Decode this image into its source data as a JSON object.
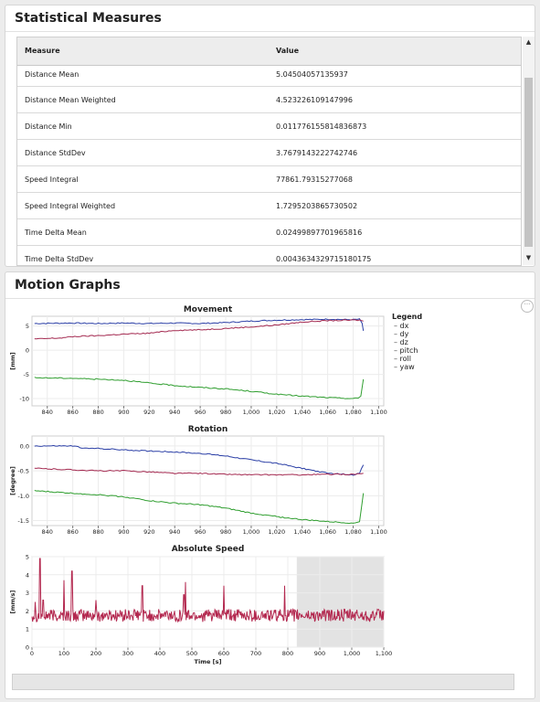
{
  "stats": {
    "title": "Statistical Measures",
    "columns": [
      "Measure",
      "Value"
    ],
    "rows": [
      {
        "measure": "Distance Mean",
        "value": "5.04504057135937"
      },
      {
        "measure": "Distance Mean Weighted",
        "value": "4.523226109147996"
      },
      {
        "measure": "Distance Min",
        "value": "0.011776155814836873"
      },
      {
        "measure": "Distance StdDev",
        "value": "3.7679143222742746"
      },
      {
        "measure": "Speed Integral",
        "value": "77861.79315277068"
      },
      {
        "measure": "Speed Integral Weighted",
        "value": "1.7295203865730502"
      },
      {
        "measure": "Time Delta Mean",
        "value": "0.02499897701965816"
      },
      {
        "measure": "Time Delta StdDev",
        "value": "0.004363432971518017​5"
      }
    ]
  },
  "graphs": {
    "title": "Motion Graphs",
    "legend": {
      "title": "Legend",
      "items": [
        {
          "label": "dx",
          "color": "#2b3fa6"
        },
        {
          "label": "dy",
          "color": "#a3284f"
        },
        {
          "label": "dz",
          "color": "#2f9e2f"
        },
        {
          "label": "pitch",
          "color": "#2b3fa6"
        },
        {
          "label": "roll",
          "color": "#a3284f"
        },
        {
          "label": "yaw",
          "color": "#2f9e2f"
        }
      ]
    }
  },
  "chart_data": [
    {
      "type": "line",
      "title": "Movement",
      "ylabel": "[mm]",
      "xlabel": "",
      "xlim": [
        828,
        1104
      ],
      "ylim": [
        -11.5,
        7
      ],
      "xticks": [
        "840",
        "860",
        "880",
        "900",
        "920",
        "940",
        "960",
        "980",
        "1,000",
        "1,020",
        "1,040",
        "1,060",
        "1,080",
        "1,100"
      ],
      "yticks": [
        "5",
        "0",
        "-5",
        "-10"
      ],
      "series": [
        {
          "name": "dx",
          "x": [
            830,
            860,
            880,
            900,
            920,
            940,
            960,
            980,
            1000,
            1020,
            1040,
            1060,
            1080,
            1085,
            1087,
            1088
          ],
          "y": [
            5.5,
            5.6,
            5.5,
            5.6,
            5.5,
            5.6,
            5.5,
            5.7,
            6.0,
            6.2,
            6.3,
            6.4,
            6.3,
            6.4,
            5.5,
            4.0
          ]
        },
        {
          "name": "dy",
          "x": [
            830,
            850,
            860,
            880,
            900,
            920,
            940,
            960,
            980,
            1000,
            1020,
            1040,
            1060,
            1080,
            1085,
            1088
          ],
          "y": [
            2.3,
            2.5,
            2.8,
            3.0,
            3.3,
            3.5,
            4.1,
            4.2,
            4.5,
            4.8,
            5.2,
            5.8,
            6.1,
            6.2,
            6.2,
            6.0
          ]
        },
        {
          "name": "dz",
          "x": [
            830,
            860,
            880,
            900,
            920,
            940,
            960,
            980,
            1000,
            1020,
            1040,
            1060,
            1080,
            1084,
            1086,
            1088
          ],
          "y": [
            -5.7,
            -5.8,
            -6.0,
            -6.2,
            -6.8,
            -7.3,
            -7.7,
            -8.0,
            -8.5,
            -9.1,
            -9.5,
            -9.8,
            -10.0,
            -9.9,
            -9.5,
            -6.0
          ]
        }
      ]
    },
    {
      "type": "line",
      "title": "Rotation",
      "ylabel": "[degree]",
      "xlabel": "",
      "xlim": [
        828,
        1104
      ],
      "ylim": [
        -1.6,
        0.2
      ],
      "xticks": [
        "840",
        "860",
        "880",
        "900",
        "920",
        "940",
        "960",
        "980",
        "1,000",
        "1,020",
        "1,040",
        "1,060",
        "1,080",
        "1,100"
      ],
      "yticks": [
        "0.0",
        "-0.5",
        "-1.0",
        "-1.5"
      ],
      "series": [
        {
          "name": "pitch",
          "x": [
            830,
            860,
            870,
            880,
            900,
            920,
            940,
            960,
            980,
            1000,
            1020,
            1040,
            1060,
            1080,
            1085,
            1088
          ],
          "y": [
            0.0,
            0.0,
            -0.05,
            -0.05,
            -0.08,
            -0.1,
            -0.12,
            -0.15,
            -0.2,
            -0.28,
            -0.35,
            -0.45,
            -0.55,
            -0.58,
            -0.55,
            -0.38
          ]
        },
        {
          "name": "roll",
          "x": [
            830,
            860,
            880,
            900,
            920,
            940,
            960,
            980,
            1000,
            1020,
            1040,
            1060,
            1080,
            1085,
            1088
          ],
          "y": [
            -0.45,
            -0.48,
            -0.5,
            -0.5,
            -0.52,
            -0.55,
            -0.55,
            -0.57,
            -0.58,
            -0.58,
            -0.58,
            -0.57,
            -0.57,
            -0.56,
            -0.55
          ]
        },
        {
          "name": "yaw",
          "x": [
            830,
            860,
            880,
            900,
            920,
            940,
            960,
            980,
            1000,
            1020,
            1040,
            1060,
            1080,
            1085,
            1088
          ],
          "y": [
            -0.9,
            -0.95,
            -0.98,
            -1.02,
            -1.1,
            -1.15,
            -1.18,
            -1.25,
            -1.35,
            -1.42,
            -1.48,
            -1.52,
            -1.55,
            -1.52,
            -0.95
          ]
        }
      ]
    },
    {
      "type": "line",
      "title": "Absolute Speed",
      "xlabel": "Time [s]",
      "ylabel": "[mm/s]",
      "xlim": [
        0,
        1100
      ],
      "ylim": [
        0,
        5
      ],
      "xticks": [
        "0",
        "100",
        "200",
        "300",
        "400",
        "500",
        "600",
        "700",
        "800",
        "900",
        "1,000",
        "1,100"
      ],
      "yticks": [
        "5",
        "4",
        "3",
        "2",
        "1",
        "0"
      ],
      "highlight_x": [
        828,
        1100
      ],
      "series": [
        {
          "name": "",
          "baseline": 1.75,
          "noise": 0.35,
          "peaks": [
            [
              10,
              2.5
            ],
            [
              25,
              4.9
            ],
            [
              35,
              2.6
            ],
            [
              100,
              3.7
            ],
            [
              125,
              4.2
            ],
            [
              200,
              2.6
            ],
            [
              345,
              3.4
            ],
            [
              475,
              2.9
            ],
            [
              480,
              3.6
            ],
            [
              600,
              3.4
            ],
            [
              790,
              3.4
            ]
          ]
        }
      ]
    }
  ]
}
